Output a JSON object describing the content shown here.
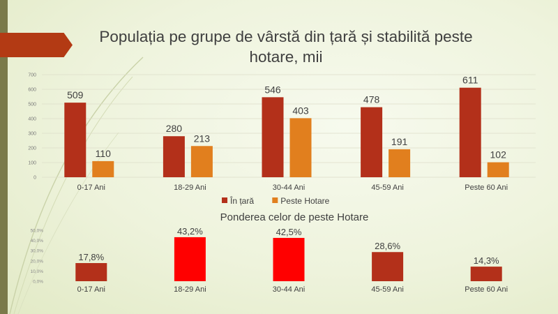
{
  "title": "Populația pe grupe de vârstă din țară și stabilită peste hotare, mii",
  "colors": {
    "in_tara": "#b3301a",
    "peste_hotare": "#e17f1e",
    "pondere_high": "#ff0000",
    "pondere_low": "#b3301a",
    "accent_tab": "#b33a14",
    "left_bar": "#7a7a4a"
  },
  "chart_data": [
    {
      "type": "bar",
      "title": "Populația pe grupe de vârstă din țară și stabilită peste hotare, mii",
      "categories": [
        "0-17 Ani",
        "18-29 Ani",
        "30-44 Ani",
        "45-59 Ani",
        "Peste 60 Ani"
      ],
      "series": [
        {
          "name": "În țară",
          "values": [
            509,
            280,
            546,
            478,
            611
          ]
        },
        {
          "name": "Peste Hotare",
          "values": [
            110,
            213,
            403,
            191,
            102
          ]
        }
      ],
      "ylim": [
        0,
        700
      ],
      "yticks": [
        "0",
        "100",
        "200",
        "300",
        "400",
        "500",
        "600",
        "700"
      ],
      "grid": true,
      "legend": "bottom"
    },
    {
      "type": "bar",
      "title": "Ponderea celor de peste Hotare",
      "categories": [
        "0-17 Ani",
        "18-29 Ani",
        "30-44 Ani",
        "45-59 Ani",
        "Peste 60 Ani"
      ],
      "values": [
        17.8,
        43.2,
        42.5,
        28.6,
        14.3
      ],
      "labels": [
        "17,8%",
        "43,2%",
        "42,5%",
        "28,6%",
        "14,3%"
      ],
      "ylim": [
        0,
        50
      ],
      "yticks": [
        "0,0%",
        "10,0%",
        "20,0%",
        "30,0%",
        "40,0%",
        "50,0%"
      ],
      "grid": false,
      "legend": "none"
    }
  ]
}
